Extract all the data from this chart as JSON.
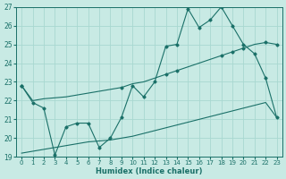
{
  "xlabel": "Humidex (Indice chaleur)",
  "bg_color": "#c8eae4",
  "grid_color": "#a8d8d0",
  "line_color": "#1a7068",
  "xlim": [
    -0.5,
    23.5
  ],
  "ylim": [
    19,
    27
  ],
  "yticks": [
    19,
    20,
    21,
    22,
    23,
    24,
    25,
    26,
    27
  ],
  "xticks": [
    0,
    1,
    2,
    3,
    4,
    5,
    6,
    7,
    8,
    9,
    10,
    11,
    12,
    13,
    14,
    15,
    16,
    17,
    18,
    19,
    20,
    21,
    22,
    23
  ],
  "line1_x": [
    0,
    1,
    2,
    3,
    4,
    5,
    6,
    7,
    8,
    9,
    10,
    11,
    12,
    13,
    14,
    15,
    16,
    17,
    18,
    19,
    20,
    21,
    22,
    23
  ],
  "line1_y": [
    22.8,
    21.9,
    21.6,
    19.1,
    20.6,
    20.8,
    20.8,
    19.5,
    20.0,
    21.1,
    22.8,
    22.2,
    23.0,
    24.9,
    25.0,
    26.9,
    25.9,
    26.3,
    27.0,
    26.0,
    25.0,
    24.5,
    23.2,
    21.1
  ],
  "line2_x": [
    0,
    1,
    2,
    3,
    4,
    5,
    6,
    7,
    8,
    9,
    10,
    11,
    12,
    13,
    14,
    15,
    16,
    17,
    18,
    19,
    20,
    21,
    22,
    23
  ],
  "line2_y": [
    22.8,
    22.0,
    22.1,
    22.15,
    22.2,
    22.3,
    22.4,
    22.5,
    22.6,
    22.7,
    22.9,
    23.0,
    23.2,
    23.4,
    23.6,
    23.8,
    24.0,
    24.2,
    24.4,
    24.6,
    24.8,
    25.0,
    25.1,
    25.0
  ],
  "line2_marker_x": [
    0,
    9,
    13,
    14,
    18,
    19,
    20,
    22,
    23
  ],
  "line2_marker_y": [
    22.8,
    22.7,
    23.4,
    23.6,
    24.4,
    24.6,
    24.8,
    25.1,
    25.0
  ],
  "line3_x": [
    0,
    1,
    2,
    3,
    4,
    5,
    6,
    7,
    8,
    9,
    10,
    11,
    12,
    13,
    14,
    15,
    16,
    17,
    18,
    19,
    20,
    21,
    22,
    23
  ],
  "line3_y": [
    19.2,
    19.3,
    19.4,
    19.5,
    19.6,
    19.7,
    19.8,
    19.85,
    19.9,
    20.0,
    20.1,
    20.25,
    20.4,
    20.55,
    20.7,
    20.85,
    21.0,
    21.15,
    21.3,
    21.45,
    21.6,
    21.75,
    21.9,
    21.1
  ]
}
